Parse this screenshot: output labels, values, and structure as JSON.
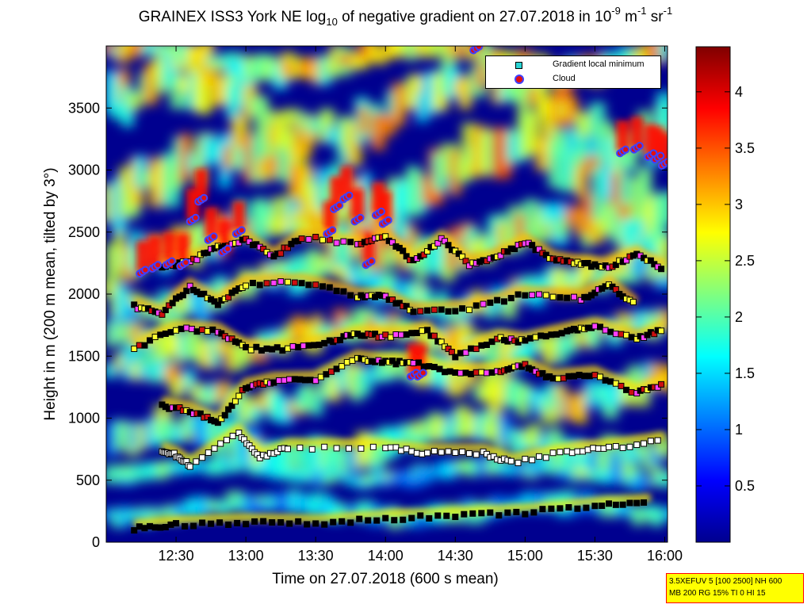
{
  "title": {
    "prefix": "GRAINEX ISS3 York NE log",
    "sub": "10",
    "middle": " of negative gradient on 27.07.2018 in 10",
    "sup1": "-9",
    "mid2": " m",
    "sup2": "-1",
    "mid3": " sr",
    "sup3": "-1"
  },
  "legend": {
    "entries": [
      {
        "label": "Gradient local minimum",
        "marker": "square",
        "color": "#2ad4d4"
      },
      {
        "label": "Cloud",
        "marker": "circle",
        "color": "#e01010",
        "edge": "#4040ff"
      }
    ],
    "placement": "top-right"
  },
  "info_box": {
    "line1": "3.5XEFUV 5 [100 2500] NH 600",
    "line2": "MB 200 RG 15% TI 0 HI 15"
  },
  "chart_data": {
    "type": "heatmap",
    "xlabel": "Time on 27.07.2018 (600 s mean)",
    "ylabel": "Height in m (200 m mean, tilted by 3°)",
    "x_ticks": [
      "12:30",
      "13:00",
      "13:30",
      "14:00",
      "14:30",
      "15:00",
      "15:30",
      "16:00"
    ],
    "x_tick_hours": [
      12.5,
      13.0,
      13.5,
      14.0,
      14.5,
      15.0,
      15.5,
      16.0
    ],
    "xlim_hours": [
      12.0,
      16.02
    ],
    "y_ticks": [
      "0",
      "500",
      "1000",
      "1500",
      "2000",
      "2500",
      "3000",
      "3500"
    ],
    "y_tick_values": [
      0,
      500,
      1000,
      1500,
      2000,
      2500,
      3000,
      3500
    ],
    "ylim": [
      0,
      4000
    ],
    "colorbar": {
      "ticks": [
        "0.5",
        "1",
        "1.5",
        "2",
        "2.5",
        "3",
        "3.5",
        "4"
      ],
      "tick_values": [
        0.5,
        1,
        1.5,
        2,
        2.5,
        3,
        3.5,
        4
      ],
      "range": [
        0,
        4.4
      ],
      "colormap": "jet"
    },
    "gradient_minimum_layers": [
      {
        "x": [
          12.2,
          12.5,
          13.0,
          13.5,
          14.0,
          14.5,
          15.0,
          15.5,
          15.9
        ],
        "y": [
          110,
          140,
          160,
          150,
          190,
          210,
          240,
          290,
          320
        ]
      },
      {
        "x": [
          12.4,
          12.5,
          12.6,
          12.95,
          13.1,
          13.3,
          14.0,
          14.3,
          14.7,
          14.9,
          15.3,
          15.6,
          16.0
        ],
        "y": [
          740,
          700,
          620,
          880,
          680,
          760,
          760,
          720,
          720,
          640,
          730,
          760,
          820
        ]
      },
      {
        "x": [
          12.4,
          12.6,
          12.8,
          13.0,
          13.2,
          13.5,
          13.8,
          14.0,
          14.2,
          14.5,
          14.8,
          15.0,
          15.2,
          15.5,
          15.8,
          16.0
        ],
        "y": [
          1100,
          1060,
          960,
          1250,
          1300,
          1310,
          1480,
          1450,
          1450,
          1360,
          1380,
          1420,
          1320,
          1350,
          1200,
          1280
        ]
      },
      {
        "x": [
          12.2,
          12.5,
          12.8,
          13.0,
          13.3,
          13.6,
          13.8,
          14.0,
          14.3,
          14.5,
          14.8,
          15.0,
          15.3,
          15.5,
          15.8,
          16.0
        ],
        "y": [
          1560,
          1720,
          1700,
          1560,
          1560,
          1620,
          1680,
          1660,
          1700,
          1500,
          1640,
          1620,
          1700,
          1740,
          1640,
          1720
        ]
      },
      {
        "x": [
          12.4,
          12.6,
          12.8,
          13.0,
          13.2,
          13.4,
          13.8,
          14.0,
          14.2,
          14.4,
          14.6,
          14.8,
          15.0,
          15.2,
          15.4,
          15.6,
          15.8,
          16.0
        ],
        "y": [
          2220,
          2260,
          2380,
          2440,
          2300,
          2460,
          2400,
          2460,
          2260,
          2440,
          2240,
          2300,
          2420,
          2280,
          2240,
          2220,
          2320,
          2200
        ]
      },
      {
        "x": [
          12.2,
          12.4,
          12.6,
          12.8,
          13.0,
          13.4,
          13.8,
          14.0,
          14.2,
          14.6,
          15.0,
          15.4,
          15.6,
          15.8
        ],
        "y": [
          1900,
          1840,
          2060,
          1920,
          2080,
          2100,
          1980,
          1980,
          1860,
          1880,
          2000,
          1960,
          2080,
          1900
        ]
      }
    ],
    "cloud_points": [
      {
        "x": [
          12.26,
          12.35,
          12.45,
          12.55,
          12.62,
          12.68,
          12.75,
          12.85,
          12.95
        ],
        "y": [
          2180,
          2220,
          2250,
          2240,
          2600,
          2760,
          2450,
          2350,
          2500
        ]
      },
      {
        "x": [
          13.6,
          13.65,
          13.72,
          13.8,
          13.88,
          13.95,
          14.0
        ],
        "y": [
          2500,
          2700,
          2780,
          2600,
          2250,
          2650,
          2580
        ]
      },
      {
        "x": [
          14.2,
          14.25
        ],
        "y": [
          1350,
          1350
        ]
      },
      {
        "x": [
          14.65
        ],
        "y": [
          3980
        ]
      },
      {
        "x": [
          15.7,
          15.8,
          15.9,
          15.95,
          16.0
        ],
        "y": [
          3150,
          3180,
          3120,
          3100,
          3050
        ]
      }
    ]
  }
}
